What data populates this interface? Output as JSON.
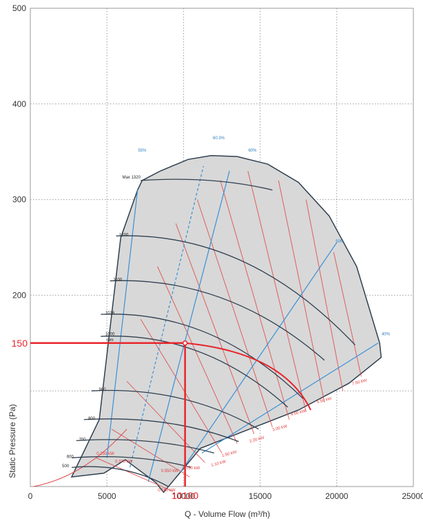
{
  "chart_data": {
    "type": "line",
    "xlabel": "Q - Volume Flow (m³/h)",
    "ylabel": "Static Pressure (Pa)",
    "xlim": [
      0,
      25000
    ],
    "ylim": [
      0,
      500
    ],
    "x_ticks": [
      "0",
      "5000",
      "10000",
      "15000",
      "20000",
      "25000"
    ],
    "y_ticks": [
      "500",
      "400",
      "300",
      "200"
    ],
    "grid": true,
    "operating_point": {
      "x": 10100,
      "y": 150,
      "x_label": "10100",
      "y_label": "150"
    },
    "speed_curve_labels": [
      "rpm",
      "Max 1320",
      "1200",
      "1100",
      "1036",
      "1000",
      "900",
      "800",
      "700",
      "600",
      "500"
    ],
    "efficiency_labels": [
      "55%",
      "60.3%",
      "60%",
      "50%",
      "40%"
    ],
    "power_labels": [
      "0.160 kW",
      "0.250 kW",
      "0.370 kW",
      "0.550 kW",
      "0.750 kW",
      "1.10 kW",
      "1.50 kW",
      "2.20 kW",
      "3.00 kW",
      "4.00 kW",
      "5.50 kW",
      "7.50 kW"
    ],
    "colors": {
      "speed_curve": "#2f3f4f",
      "efficiency_curve": "#3a8fd6",
      "power_curve": "#e04848",
      "operating_point": "#e8242a",
      "envelope_fill": "#d8d8d8"
    }
  }
}
